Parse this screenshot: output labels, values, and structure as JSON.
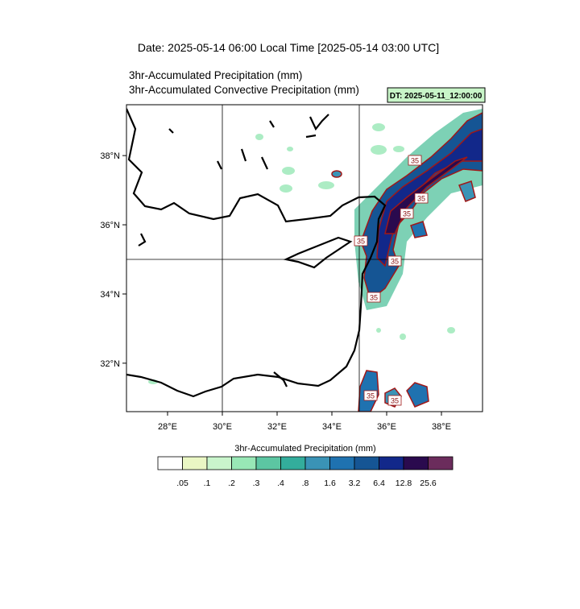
{
  "chart_data": {
    "type": "map",
    "title": "Date: 2025-05-14  06:00 Local Time [2025-05-14  03:00 UTC]",
    "subtitle_lines": [
      "3hr-Accumulated Precipitation   (mm)",
      "3hr-Accumulated Convective Precipitation   (mm)"
    ],
    "stamp": "DT: 2025-05-11_12:00:00",
    "xlim": [
      26.5,
      39.5
    ],
    "ylim": [
      30.6,
      39.47
    ],
    "xticks": [
      {
        "value": 28,
        "label": "28°E"
      },
      {
        "value": 30,
        "label": "30°E"
      },
      {
        "value": 32,
        "label": "32°E"
      },
      {
        "value": 34,
        "label": "34°E"
      },
      {
        "value": 36,
        "label": "36°E"
      },
      {
        "value": 38,
        "label": "38°E"
      }
    ],
    "yticks": [
      {
        "value": 32,
        "label": "32°N"
      },
      {
        "value": 34,
        "label": "34°N"
      },
      {
        "value": 36,
        "label": "36°N"
      },
      {
        "value": 38,
        "label": "38°N"
      }
    ],
    "grid_lon": [
      30,
      35
    ],
    "grid_lat": [
      35
    ],
    "contour_label": "35",
    "colorbar": {
      "title": "3hr-Accumulated Precipitation  (mm)",
      "colors": [
        "#ffffff",
        "#eaf7c4",
        "#c9f5cc",
        "#98e8b6",
        "#5cc6a2",
        "#33ad9c",
        "#3a93b6",
        "#1f72b0",
        "#155594",
        "#12288a",
        "#2a0a4e",
        "#6b2c5c"
      ],
      "ticks": [
        {
          "value": 0.05,
          "label": ".05"
        },
        {
          "value": 0.1,
          "label": ".1"
        },
        {
          "value": 0.2,
          "label": ".2"
        },
        {
          "value": 0.3,
          "label": ".3"
        },
        {
          "value": 0.4,
          "label": ".4"
        },
        {
          "value": 0.8,
          "label": ".8"
        },
        1.6,
        3.2,
        6.4,
        12.8,
        25.6
      ]
    }
  }
}
